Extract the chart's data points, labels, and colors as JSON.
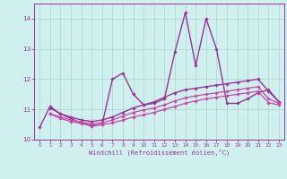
{
  "xlabel": "Windchill (Refroidissement éolien,°C)",
  "background_color": "#cff0ee",
  "grid_color": "#aaddcc",
  "xlim": [
    -0.5,
    23.5
  ],
  "ylim": [
    10.0,
    14.5
  ],
  "yticks": [
    10,
    11,
    12,
    13,
    14
  ],
  "xticks": [
    0,
    1,
    2,
    3,
    4,
    5,
    6,
    7,
    8,
    9,
    10,
    11,
    12,
    13,
    14,
    15,
    16,
    17,
    18,
    19,
    20,
    21,
    22,
    23
  ],
  "series": [
    {
      "x": [
        0,
        1,
        2,
        3,
        4,
        5,
        6,
        7,
        8,
        9,
        10,
        11,
        12,
        13,
        14,
        15,
        16,
        17,
        18,
        19,
        20,
        21,
        22,
        23
      ],
      "y": [
        10.4,
        11.1,
        10.85,
        10.7,
        10.55,
        10.45,
        10.5,
        12.0,
        12.2,
        11.5,
        11.15,
        11.2,
        11.35,
        12.9,
        14.2,
        12.45,
        14.0,
        13.0,
        11.2,
        11.2,
        11.35,
        11.55,
        11.65,
        11.25
      ],
      "color": "#993399",
      "lw": 1.0
    },
    {
      "x": [
        0,
        1,
        2,
        3,
        4,
        5,
        6,
        7,
        8,
        9,
        10,
        11,
        12,
        13,
        14,
        15,
        16,
        17,
        18,
        19,
        20,
        21,
        22,
        23
      ],
      "y": [
        null,
        11.05,
        10.85,
        10.75,
        10.65,
        10.6,
        10.65,
        10.75,
        10.9,
        11.05,
        11.15,
        11.25,
        11.4,
        11.55,
        11.65,
        11.7,
        11.75,
        11.8,
        11.85,
        11.9,
        11.95,
        12.0,
        11.6,
        11.25
      ],
      "color": "#993399",
      "lw": 1.0
    },
    {
      "x": [
        1,
        2,
        3,
        4,
        5,
        6,
        7,
        8,
        9,
        10,
        11,
        12,
        13,
        14,
        15,
        16,
        17,
        18,
        19,
        20,
        21,
        22,
        23
      ],
      "y": [
        10.85,
        10.75,
        10.65,
        10.58,
        10.52,
        10.56,
        10.65,
        10.78,
        10.9,
        10.98,
        11.05,
        11.15,
        11.28,
        11.38,
        11.45,
        11.5,
        11.55,
        11.6,
        11.65,
        11.7,
        11.75,
        11.35,
        11.2
      ],
      "color": "#cc44aa",
      "lw": 0.9
    },
    {
      "x": [
        1,
        2,
        3,
        4,
        5,
        6,
        7,
        8,
        9,
        10,
        11,
        12,
        13,
        14,
        15,
        16,
        17,
        18,
        19,
        20,
        21,
        22,
        23
      ],
      "y": [
        10.85,
        10.7,
        10.6,
        10.53,
        10.48,
        10.5,
        10.55,
        10.65,
        10.75,
        10.82,
        10.9,
        11.0,
        11.1,
        11.2,
        11.28,
        11.35,
        11.4,
        11.45,
        11.5,
        11.55,
        11.6,
        11.22,
        11.15
      ],
      "color": "#cc44aa",
      "lw": 0.9
    }
  ]
}
